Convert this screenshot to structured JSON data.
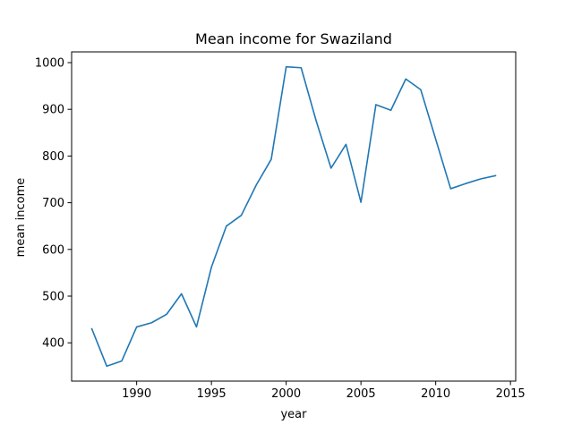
{
  "chart_data": {
    "type": "line",
    "title": "Mean income for Swaziland",
    "xlabel": "year",
    "ylabel": "mean income",
    "xlim": [
      1985.65,
      2015.35
    ],
    "ylim": [
      318,
      1023
    ],
    "xticks": [
      1990,
      1995,
      2000,
      2005,
      2010,
      2015
    ],
    "yticks": [
      400,
      500,
      600,
      700,
      800,
      900,
      1000
    ],
    "grid": false,
    "series": [
      {
        "color": "#1f77b4",
        "points": [
          [
            1987,
            430
          ],
          [
            1988,
            350
          ],
          [
            1989,
            361
          ],
          [
            1990,
            434
          ],
          [
            1991,
            443
          ],
          [
            1992,
            461
          ],
          [
            1993,
            505
          ],
          [
            1994,
            434
          ],
          [
            1995,
            562
          ],
          [
            1996,
            650
          ],
          [
            1997,
            673
          ],
          [
            1998,
            738
          ],
          [
            1999,
            793
          ],
          [
            2000,
            991
          ],
          [
            2001,
            989
          ],
          [
            2002,
            876
          ],
          [
            2003,
            774
          ],
          [
            2004,
            825
          ],
          [
            2005,
            701
          ],
          [
            2006,
            910
          ],
          [
            2007,
            898
          ],
          [
            2008,
            965
          ],
          [
            2009,
            942
          ],
          [
            2010,
            836
          ],
          [
            2011,
            730
          ],
          [
            2012,
            741
          ],
          [
            2013,
            751
          ],
          [
            2014,
            758
          ]
        ]
      }
    ]
  }
}
